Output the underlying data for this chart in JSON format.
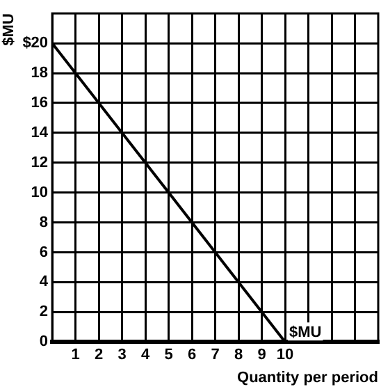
{
  "chart_data": {
    "type": "line",
    "ylabel": "$MU",
    "xlabel": "Quantity per period",
    "x": [
      0,
      10
    ],
    "series": [
      {
        "name": "$MU",
        "color": "#000000",
        "values": [
          20,
          0
        ]
      }
    ],
    "xlim": [
      0,
      14
    ],
    "xticks": [
      1,
      2,
      3,
      4,
      5,
      6,
      7,
      8,
      9,
      10,
      {
        "value": 11,
        "label": null
      },
      {
        "value": 12,
        "label": null
      },
      {
        "value": 13,
        "label": null
      }
    ],
    "ylim": [
      0,
      22
    ],
    "yticks": [
      0,
      2,
      4,
      6,
      8,
      10,
      12,
      14,
      16,
      18,
      {
        "value": 20,
        "label": "$20"
      }
    ],
    "grid": true,
    "legend": false,
    "marker": "none",
    "line_style": "solid"
  }
}
